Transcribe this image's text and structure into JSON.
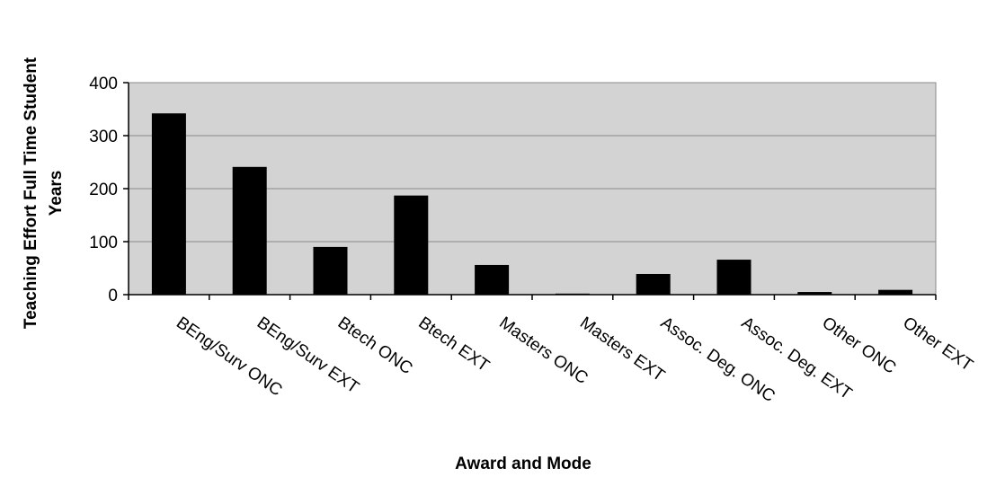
{
  "chart_data": {
    "type": "bar",
    "title": "",
    "xlabel": "Award and Mode",
    "ylabel_lines": [
      "Teaching Effort Full Time Student",
      "Years"
    ],
    "categories": [
      "BEng/Surv ONC",
      "BEng/Surv EXT",
      "Btech ONC",
      "Btech EXT",
      "Masters ONC",
      "Masters EXT",
      "Assoc. Deg. ONC",
      "Assoc. Deg. EXT",
      "Other ONC",
      "Other EXT"
    ],
    "values": [
      342,
      241,
      90,
      187,
      56,
      2,
      39,
      66,
      5,
      9
    ],
    "ylim": [
      0,
      400
    ],
    "yticks": [
      "0",
      "100",
      "200",
      "300",
      "400"
    ],
    "grid": true,
    "legend": "none",
    "colors": {
      "bar": "#000000",
      "plot_bg": "#d3d3d3",
      "gridline": "#8a8a8a"
    }
  }
}
